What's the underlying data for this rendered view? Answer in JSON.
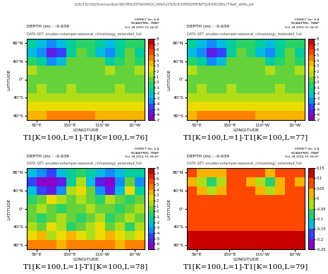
{
  "header": {
    "path": "[18/10/16]/home/don/WORK/DYNAMOC/ANALYSIS/EXPERIMENTS/ERRORS/TRef_diffs.jnl"
  },
  "chart_data": [
    {
      "type": "heatmap",
      "title": "T1[K=100,L=1]-T1[K=100,L=76]",
      "subtitle": "DEPTH (m) : -0.639",
      "dataset": "DATA SET: anudeo-votemper-seasonal_climatology_extended_full",
      "stamp": [
        "FERRET Ver. 6.8",
        "NOAA/PMEL TMAP",
        "Oct 18 2016 15:34:47"
      ],
      "x_label": "LONGITUDE",
      "y_label": "LATITUDE",
      "xlim": [
        20,
        380
      ],
      "ylim": [
        -90,
        90
      ],
      "xticks": [
        {
          "value": 50,
          "label": "50°E"
        },
        {
          "value": 150,
          "label": "150°E"
        },
        {
          "value": 250,
          "label": "110°W"
        },
        {
          "value": 350,
          "label": "10°W"
        }
      ],
      "yticks": [
        {
          "value": -80,
          "label": "80°S"
        },
        {
          "value": -40,
          "label": "40°S"
        },
        {
          "value": 0,
          "label": "0°"
        },
        {
          "value": 40,
          "label": "40°N"
        },
        {
          "value": 80,
          "label": "80°N"
        }
      ],
      "x_edges": [
        20,
        50,
        80,
        110,
        140,
        170,
        200,
        230,
        260,
        290,
        320,
        350,
        380
      ],
      "y_edges": [
        -90,
        -70,
        -50,
        -30,
        -10,
        10,
        30,
        50,
        70,
        90
      ],
      "cells": [
        [
          3,
          3,
          4,
          4,
          4,
          4,
          4,
          3,
          3,
          3,
          3,
          3
        ],
        [
          2,
          2,
          2,
          2,
          2,
          2,
          2,
          2,
          2,
          2,
          2,
          2
        ],
        [
          1,
          1,
          1,
          1,
          1,
          1,
          1,
          1,
          1,
          1,
          1,
          1
        ],
        [
          0,
          1,
          0,
          0,
          1,
          0,
          0,
          0,
          0,
          1,
          0,
          0
        ],
        [
          0,
          0,
          0,
          0,
          0,
          0,
          0,
          0,
          0,
          0,
          0,
          0
        ],
        [
          1,
          0,
          0,
          0,
          0,
          0,
          0,
          0,
          1,
          0,
          0,
          1
        ],
        [
          -1,
          -2,
          -4,
          -3,
          0,
          0,
          0,
          0,
          -2,
          -1,
          0,
          -1
        ],
        [
          -3,
          -4,
          -6,
          -5,
          -2,
          0,
          -1,
          -3,
          -4,
          -2,
          0,
          -2
        ],
        [
          -2,
          -3,
          -4,
          -3,
          -2,
          -1,
          -1,
          -2,
          -3,
          -2,
          -1,
          -1
        ]
      ],
      "colorbar_range": [
        -7,
        8
      ],
      "colorbar_ticks": [
        -7,
        -6,
        -5,
        -4,
        -3,
        -2,
        -1,
        0,
        1,
        2,
        3,
        4,
        5,
        6,
        7,
        8
      ]
    },
    {
      "type": "heatmap",
      "title": "T1[K=100,L=1]-T1[K=100,L=77]",
      "subtitle": "DEPTH (m) : -0.639",
      "dataset": "DATA SET: anudeo-votemper-seasonal_climatology_extended_full",
      "stamp": [
        "FERRET Ver. 6.8",
        "NOAA/PMEL TMAP",
        "Oct 18 2016 15:34:47"
      ],
      "x_label": "LONGITUDE",
      "y_label": "LATITUDE",
      "xlim": [
        20,
        380
      ],
      "ylim": [
        -90,
        90
      ],
      "xticks": [
        {
          "value": 50,
          "label": "50°E"
        },
        {
          "value": 150,
          "label": "150°E"
        },
        {
          "value": 250,
          "label": "110°W"
        },
        {
          "value": 350,
          "label": "10°W"
        }
      ],
      "yticks": [
        {
          "value": -80,
          "label": "80°S"
        },
        {
          "value": -40,
          "label": "40°S"
        },
        {
          "value": 0,
          "label": "0°"
        },
        {
          "value": 40,
          "label": "40°N"
        },
        {
          "value": 80,
          "label": "80°N"
        }
      ],
      "x_edges": [
        20,
        50,
        80,
        110,
        140,
        170,
        200,
        230,
        260,
        290,
        320,
        350,
        380
      ],
      "y_edges": [
        -90,
        -70,
        -50,
        -30,
        -10,
        10,
        30,
        50,
        70,
        90
      ],
      "cells": [
        [
          3,
          4,
          4,
          4,
          4,
          4,
          4,
          3,
          3,
          3,
          3,
          3
        ],
        [
          2,
          2,
          2,
          2,
          2,
          2,
          2,
          2,
          2,
          2,
          2,
          2
        ],
        [
          1,
          1,
          1,
          1,
          1,
          1,
          1,
          1,
          1,
          1,
          1,
          1
        ],
        [
          0,
          1,
          0,
          0,
          1,
          0,
          0,
          0,
          0,
          1,
          0,
          0
        ],
        [
          0,
          0,
          0,
          0,
          0,
          0,
          0,
          0,
          0,
          0,
          0,
          0
        ],
        [
          1,
          0,
          0,
          0,
          0,
          0,
          0,
          0,
          1,
          0,
          0,
          1
        ],
        [
          -1,
          -2,
          -4,
          -3,
          0,
          0,
          0,
          0,
          -2,
          -1,
          0,
          -1
        ],
        [
          -3,
          -4,
          -6,
          -5,
          -2,
          0,
          -1,
          -3,
          -4,
          -2,
          0,
          -2
        ],
        [
          -2,
          -3,
          -4,
          -3,
          -2,
          -1,
          -1,
          -2,
          -3,
          -2,
          -1,
          -1
        ]
      ],
      "colorbar_range": [
        -7,
        8
      ],
      "colorbar_ticks": [
        -7,
        -6,
        -5,
        -4,
        -3,
        -2,
        -1,
        0,
        1,
        2,
        3,
        4,
        5,
        6,
        7,
        8
      ]
    },
    {
      "type": "heatmap",
      "title": "T1[K=100,L=1]-T1[K=100,L=78]",
      "subtitle": "DEPTH (m) : -0.639",
      "dataset": "DATA SET: anudeo-votemper-seasonal_climatology_extended_full",
      "stamp": [
        "FERRET Ver. 6.8",
        "NOAA/PMEL TMAP",
        "Oct 18 2016 15:34:47"
      ],
      "x_label": "LONGITUDE",
      "y_label": "LATITUDE",
      "xlim": [
        20,
        380
      ],
      "ylim": [
        -90,
        90
      ],
      "xticks": [
        {
          "value": 50,
          "label": "50°E"
        },
        {
          "value": 150,
          "label": "150°E"
        },
        {
          "value": 250,
          "label": "110°W"
        },
        {
          "value": 350,
          "label": "10°W"
        }
      ],
      "yticks": [
        {
          "value": -80,
          "label": "80°S"
        },
        {
          "value": -40,
          "label": "40°S"
        },
        {
          "value": 0,
          "label": "0°"
        },
        {
          "value": 40,
          "label": "40°N"
        },
        {
          "value": 80,
          "label": "80°N"
        }
      ],
      "x_edges": [
        20,
        50,
        80,
        110,
        140,
        170,
        200,
        230,
        260,
        290,
        320,
        350,
        380
      ],
      "y_edges": [
        -90,
        -70,
        -50,
        -30,
        -10,
        10,
        30,
        50,
        70,
        90
      ],
      "cells": [
        [
          4,
          4,
          4,
          3,
          4,
          4,
          4,
          4,
          4,
          3,
          4,
          4
        ],
        [
          2,
          3,
          1,
          2,
          3,
          2,
          1,
          2,
          3,
          2,
          1,
          2
        ],
        [
          1,
          0,
          2,
          1,
          -1,
          0,
          1,
          2,
          0,
          1,
          -1,
          1
        ],
        [
          0,
          -1,
          0,
          1,
          0,
          -1,
          0,
          1,
          -1,
          0,
          1,
          0
        ],
        [
          0,
          1,
          0,
          -1,
          0,
          0,
          1,
          0,
          0,
          -1,
          0,
          1
        ],
        [
          -1,
          0,
          2,
          1,
          0,
          1,
          0,
          -1,
          1,
          0,
          -1,
          0
        ],
        [
          -3,
          -5,
          -6,
          -4,
          1,
          2,
          0,
          -4,
          -6,
          -3,
          2,
          -2
        ],
        [
          -5,
          -7,
          -7,
          -6,
          -2,
          1,
          -3,
          -6,
          -7,
          -4,
          0,
          -4
        ],
        [
          -3,
          -4,
          -5,
          -3,
          -2,
          -1,
          -2,
          -3,
          -4,
          -3,
          -2,
          -2
        ]
      ],
      "colorbar_range": [
        -7,
        8
      ],
      "colorbar_ticks": [
        -7,
        -6,
        -5,
        -4,
        -3,
        -2,
        -1,
        0,
        1,
        2,
        3,
        4,
        5,
        6,
        7,
        8
      ]
    },
    {
      "type": "heatmap",
      "title": "T1[K=100,L=1]-T1[K=100,L=79]",
      "subtitle": "DEPTH (m) : -0.639",
      "dataset": "DATA SET: anudeo-votemper-seasonal_climatology_extended_full",
      "stamp": [
        "FERRET Ver. 6.8",
        "NOAA/PMEL TMAP",
        "Oct 18 2016 15:34:47"
      ],
      "x_label": "LONGITUDE",
      "y_label": "LATITUDE",
      "xlim": [
        20,
        380
      ],
      "ylim": [
        -90,
        90
      ],
      "xticks": [
        {
          "value": 50,
          "label": "50°E"
        },
        {
          "value": 150,
          "label": "150°E"
        },
        {
          "value": 250,
          "label": "110°W"
        },
        {
          "value": 350,
          "label": "10°W"
        }
      ],
      "yticks": [
        {
          "value": -80,
          "label": "80°S"
        },
        {
          "value": -40,
          "label": "40°S"
        },
        {
          "value": 0,
          "label": "0°"
        },
        {
          "value": 40,
          "label": "40°N"
        },
        {
          "value": 80,
          "label": "80°N"
        }
      ],
      "x_edges": [
        20,
        50,
        80,
        110,
        140,
        170,
        200,
        230,
        260,
        290,
        320,
        350,
        380
      ],
      "y_edges": [
        -90,
        -70,
        -50,
        -30,
        -10,
        10,
        30,
        50,
        70,
        90
      ],
      "cells": [
        [
          0.12,
          0.12,
          0.13,
          0.14,
          0.14,
          0.13,
          0.12,
          0.12,
          0.12,
          0.11,
          0.11,
          0.12
        ],
        [
          0.1,
          0.1,
          0.1,
          0.11,
          0.1,
          0.1,
          0.1,
          0.1,
          0.1,
          0.1,
          0.1,
          0.1
        ],
        [
          0.08,
          0.08,
          0.09,
          0.08,
          0.08,
          0.08,
          0.08,
          0.08,
          0.08,
          0.08,
          0.08,
          0.08
        ],
        [
          0.08,
          0.07,
          0.08,
          0.08,
          0.07,
          0.08,
          0.08,
          0.08,
          0.07,
          0.08,
          0.08,
          0.08
        ],
        [
          0.07,
          0.07,
          0.08,
          0.07,
          0.07,
          0.07,
          0.08,
          0.07,
          0.07,
          0.07,
          0.07,
          0.07
        ],
        [
          0.07,
          0.06,
          0.07,
          0.07,
          0.08,
          0.08,
          0.08,
          0.07,
          0.06,
          0.07,
          0.07,
          0.07
        ],
        [
          0.05,
          0.0,
          -0.05,
          0.0,
          0.07,
          0.08,
          0.07,
          0.0,
          -0.03,
          0.03,
          0.07,
          0.05
        ],
        [
          0.02,
          -0.05,
          -0.08,
          -0.04,
          0.06,
          0.08,
          0.03,
          -0.02,
          -0.06,
          0.0,
          0.06,
          0.03
        ],
        [
          0.05,
          0.04,
          0.03,
          0.04,
          0.06,
          0.07,
          0.06,
          0.05,
          0.04,
          0.05,
          0.06,
          0.06
        ]
      ],
      "colorbar_range": [
        -0.25,
        0.15
      ],
      "colorbar_ticks": [
        -0.25,
        -0.2,
        -0.15,
        -0.1,
        -0.05,
        0,
        0.05,
        0.1,
        0.15
      ]
    }
  ]
}
